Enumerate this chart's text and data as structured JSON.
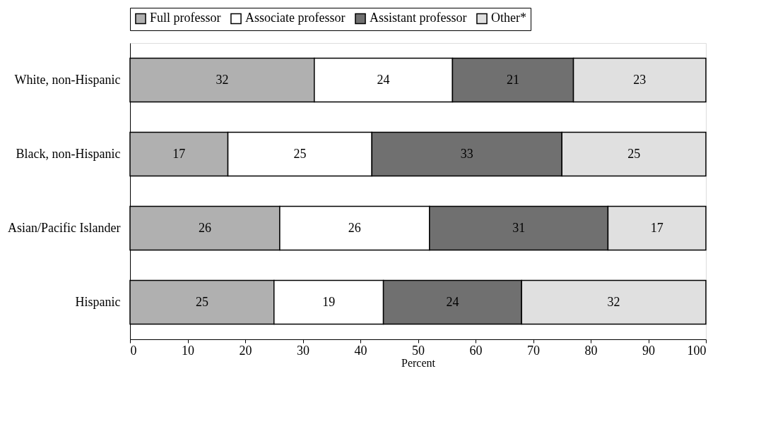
{
  "chart_data": {
    "type": "bar",
    "orientation": "horizontal",
    "stacked": true,
    "xlabel": "Percent",
    "categories": [
      "White, non-Hispanic",
      "Black, non-Hispanic",
      "Asian/Pacific Islander",
      "Hispanic"
    ],
    "series": [
      {
        "name": "Full professor",
        "color": "#b0b0b0",
        "values": [
          32,
          17,
          26,
          25
        ]
      },
      {
        "name": "Associate professor",
        "color": "#ffffff",
        "values": [
          24,
          25,
          26,
          19
        ]
      },
      {
        "name": "Assistant professor",
        "color": "#707070",
        "values": [
          21,
          33,
          31,
          24
        ]
      },
      {
        "name": "Other*",
        "color": "#e0e0e0",
        "values": [
          23,
          25,
          17,
          32
        ]
      }
    ],
    "xlim": [
      0,
      100
    ],
    "xticks": [
      0,
      10,
      20,
      30,
      40,
      50,
      60,
      70,
      80,
      90,
      100
    ],
    "data_labels": true,
    "legend": "top",
    "grid": false
  }
}
